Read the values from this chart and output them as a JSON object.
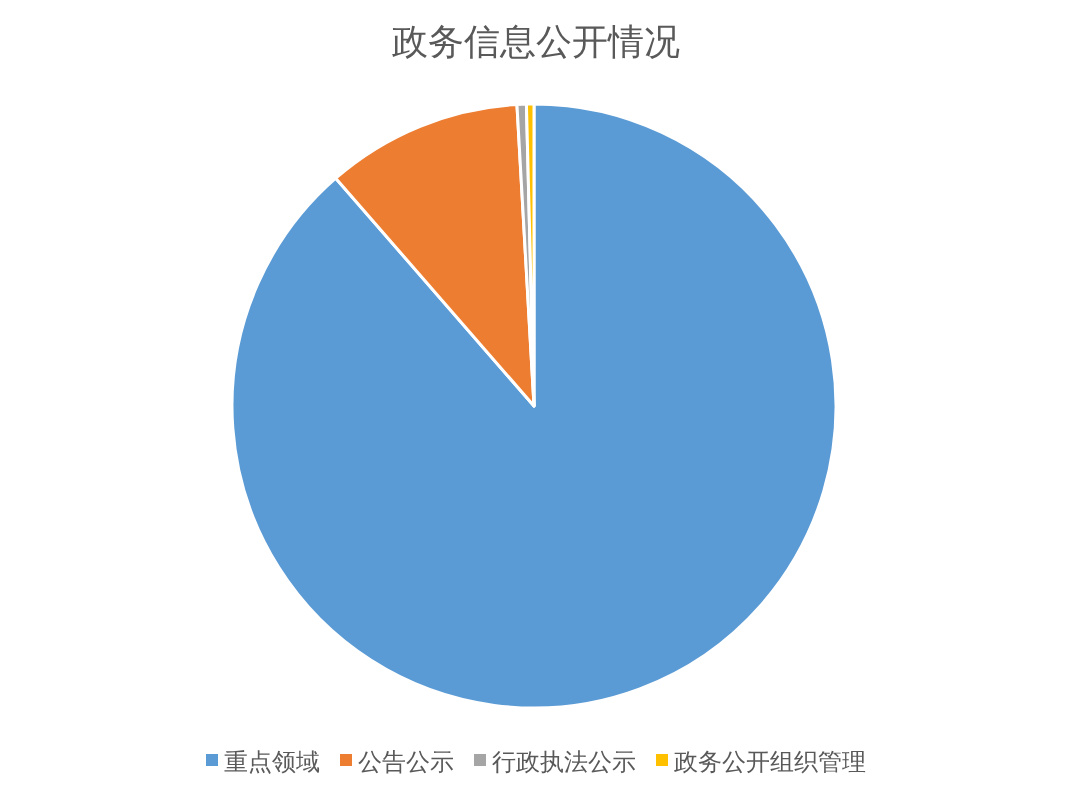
{
  "chart_data": {
    "type": "pie",
    "title": "政务信息公开情况",
    "categories": [
      "重点领域",
      "公告公示",
      "行政执法公示",
      "政务公开组织管理"
    ],
    "values": [
      88.6,
      10.5,
      0.5,
      0.4
    ],
    "colors": [
      "#5b9bd5",
      "#ed7d31",
      "#a5a5a5",
      "#ffc000"
    ],
    "legend": "bottom"
  }
}
